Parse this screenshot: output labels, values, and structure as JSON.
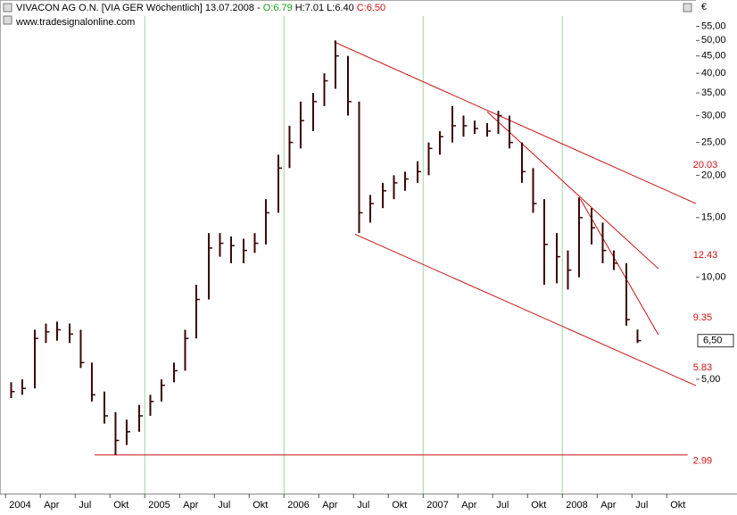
{
  "header": {
    "instrument": "VIVACON AG O.N. [VIA GER  Wöchentlich] 13.07.2008 -",
    "open": "O:6.79",
    "high": "H:7.01",
    "low": "L:6.40",
    "close": "C:6.50",
    "source": "www.tradesignalonline.com",
    "currency": "€"
  },
  "chart_data": {
    "type": "ohlc",
    "color": "#3a0505",
    "trend_color": "#cc1111",
    "grid_color": "#9fd39f",
    "log_scale": true,
    "xlim": [
      2003.96,
      2008.96
    ],
    "ylim": [
      2.3,
      59
    ],
    "xticks": [
      2004,
      {
        "value": 2004.25,
        "label": "Apr"
      },
      {
        "value": 2004.5,
        "label": "Jul"
      },
      {
        "value": 2004.75,
        "label": "Okt"
      },
      2005,
      {
        "value": 2005.25,
        "label": "Apr"
      },
      {
        "value": 2005.5,
        "label": "Jul"
      },
      {
        "value": 2005.75,
        "label": "Okt"
      },
      2006,
      {
        "value": 2006.25,
        "label": "Apr"
      },
      {
        "value": 2006.5,
        "label": "Jul"
      },
      {
        "value": 2006.75,
        "label": "Okt"
      },
      2007,
      {
        "value": 2007.25,
        "label": "Apr"
      },
      {
        "value": 2007.5,
        "label": "Jul"
      },
      {
        "value": 2007.75,
        "label": "Okt"
      },
      2008,
      {
        "value": 2008.25,
        "label": "Apr"
      },
      {
        "value": 2008.5,
        "label": "Jul"
      },
      {
        "value": 2008.75,
        "label": "Okt"
      }
    ],
    "grid_x": [
      2005,
      2006,
      2007,
      2008
    ],
    "yticks": [
      {
        "value": 55,
        "label": "55,00"
      },
      {
        "value": 50,
        "label": "50,00"
      },
      {
        "value": 45,
        "label": "45,00"
      },
      {
        "value": 40,
        "label": "40,00"
      },
      {
        "value": 35,
        "label": "35,00"
      },
      {
        "value": 30,
        "label": "30,00"
      },
      {
        "value": 25,
        "label": "25,00"
      },
      {
        "value": 20,
        "label": "20,00"
      },
      {
        "value": 15,
        "label": "15,00"
      },
      {
        "value": 10,
        "label": "10,00"
      },
      {
        "value": 5,
        "label": "5,00"
      }
    ],
    "last_price": {
      "value": 6.5,
      "label": "6,50"
    },
    "x": [
      2004.04,
      2004.12,
      2004.21,
      2004.29,
      2004.37,
      2004.46,
      2004.54,
      2004.62,
      2004.71,
      2004.79,
      2004.87,
      2004.96,
      2005.04,
      2005.12,
      2005.21,
      2005.29,
      2005.37,
      2005.46,
      2005.54,
      2005.62,
      2005.71,
      2005.79,
      2005.87,
      2005.96,
      2006.04,
      2006.12,
      2006.21,
      2006.29,
      2006.37,
      2006.46,
      2006.54,
      2006.62,
      2006.71,
      2006.79,
      2006.87,
      2006.96,
      2007.04,
      2007.12,
      2007.21,
      2007.29,
      2007.37,
      2007.46,
      2007.54,
      2007.62,
      2007.71,
      2007.79,
      2007.87,
      2007.96,
      2008.04,
      2008.12,
      2008.21,
      2008.29,
      2008.37,
      2008.46,
      2008.54
    ],
    "high": [
      4.9,
      5.0,
      7.0,
      7.3,
      7.4,
      7.3,
      7.0,
      5.6,
      4.6,
      4.0,
      3.8,
      4.2,
      4.5,
      5.0,
      5.6,
      7.0,
      9.5,
      13.5,
      13.5,
      13.2,
      13.0,
      13.5,
      17.0,
      23.0,
      28,
      33,
      35,
      40,
      50,
      45,
      33,
      17.5,
      19,
      20,
      20.5,
      22,
      25,
      27,
      32,
      30,
      29,
      28.5,
      31,
      30,
      25,
      21,
      17,
      13.5,
      12,
      17.2,
      16,
      14.5,
      12,
      11,
      7.01
    ],
    "low": [
      4.4,
      4.5,
      4.7,
      6.4,
      6.5,
      6.4,
      5.4,
      4.3,
      3.7,
      2.99,
      3.2,
      3.5,
      3.9,
      4.3,
      4.9,
      5.3,
      6.6,
      8.6,
      11.5,
      11.0,
      11.0,
      11.8,
      12.5,
      15.5,
      21,
      24,
      27,
      32,
      36,
      30,
      13.5,
      14.5,
      16,
      17,
      18,
      19,
      20,
      23,
      25,
      26,
      26.5,
      26,
      26.5,
      24,
      19,
      15.5,
      9.5,
      9.6,
      9.2,
      10,
      12.5,
      11,
      10.5,
      7.2,
      6.4
    ],
    "close": [
      4.6,
      4.7,
      6.6,
      6.9,
      7.0,
      6.8,
      5.6,
      4.5,
      3.9,
      3.3,
      3.5,
      3.9,
      4.3,
      4.8,
      5.3,
      6.6,
      8.6,
      12.2,
      12.6,
      12.4,
      12.0,
      12.6,
      15.5,
      21.0,
      25,
      29,
      33,
      38,
      45,
      33,
      15.5,
      16.5,
      18,
      19,
      19.5,
      20.5,
      24,
      26,
      28,
      28,
      27.5,
      27,
      30,
      25,
      20.5,
      16.5,
      12.5,
      11.5,
      10.5,
      15,
      14,
      12,
      11,
      7.5,
      6.5
    ],
    "trendlines": [
      {
        "x": [
          2006.36,
          2008.96
        ],
        "y": [
          49.5,
          16.5
        ],
        "label": "20.03"
      },
      {
        "x": [
          2007.46,
          2008.69
        ],
        "y": [
          30.8,
          10.6
        ],
        "label": "12.43"
      },
      {
        "x": [
          2008.13,
          2008.69
        ],
        "y": [
          17.0,
          6.77
        ],
        "label": "9.35"
      },
      {
        "x": [
          2006.51,
          2008.96
        ],
        "y": [
          13.4,
          4.79
        ],
        "label": "5.83"
      },
      {
        "x": [
          2004.64,
          2008.9
        ],
        "y": [
          2.99,
          2.99
        ],
        "label": "2.99"
      }
    ]
  }
}
